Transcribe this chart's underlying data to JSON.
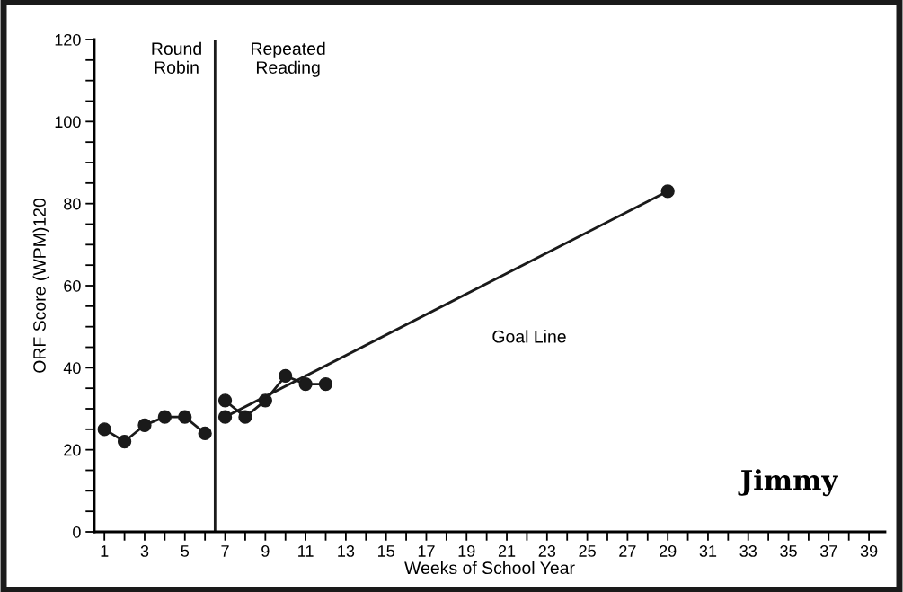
{
  "chart_data": {
    "type": "line",
    "xlabel": "Weeks of School Year",
    "ylabel": "ORF Score (WPM)120",
    "xlim": [
      0.5,
      39.8
    ],
    "ylim": [
      0,
      120
    ],
    "xticks": [
      1,
      {
        "value": 2,
        "label": null
      },
      3,
      {
        "value": 4,
        "label": null
      },
      5,
      {
        "value": 6,
        "label": null
      },
      7,
      {
        "value": 8,
        "label": null
      },
      9,
      {
        "value": 10,
        "label": null
      },
      11,
      {
        "value": 12,
        "label": null
      },
      13,
      {
        "value": 14,
        "label": null
      },
      15,
      {
        "value": 16,
        "label": null
      },
      17,
      {
        "value": 18,
        "label": null
      },
      19,
      {
        "value": 20,
        "label": null
      },
      21,
      {
        "value": 22,
        "label": null
      },
      23,
      {
        "value": 24,
        "label": null
      },
      25,
      {
        "value": 26,
        "label": null
      },
      27,
      {
        "value": 28,
        "label": null
      },
      29,
      {
        "value": 30,
        "label": null
      },
      31,
      {
        "value": 32,
        "label": null
      },
      33,
      {
        "value": 34,
        "label": null
      },
      35,
      {
        "value": 36,
        "label": null
      },
      37,
      {
        "value": 38,
        "label": null
      },
      39
    ],
    "yticks": [
      0,
      {
        "value": 5,
        "label": null
      },
      {
        "value": 10,
        "label": null
      },
      {
        "value": 15,
        "label": null
      },
      20,
      {
        "value": 25,
        "label": null
      },
      {
        "value": 30,
        "label": null
      },
      {
        "value": 35,
        "label": null
      },
      40,
      {
        "value": 45,
        "label": null
      },
      {
        "value": 50,
        "label": null
      },
      {
        "value": 55,
        "label": null
      },
      60,
      {
        "value": 65,
        "label": null
      },
      {
        "value": 70,
        "label": null
      },
      {
        "value": 75,
        "label": null
      },
      80,
      {
        "value": 85,
        "label": null
      },
      {
        "value": 90,
        "label": null
      },
      {
        "value": 95,
        "label": null
      },
      100,
      {
        "value": 105,
        "label": null
      },
      {
        "value": 110,
        "label": null
      },
      {
        "value": 115,
        "label": null
      },
      120
    ],
    "marker": "circle",
    "line_style": "solid",
    "grid": false,
    "legend": false,
    "series": [
      {
        "color": "#1a1a1a",
        "x": [
          1,
          2,
          3,
          4,
          5,
          6
        ],
        "values": [
          25,
          22,
          26,
          28,
          28,
          24
        ]
      },
      {
        "color": "#1a1a1a",
        "x": [
          7,
          8,
          9,
          10,
          11,
          12
        ],
        "values": [
          32,
          28,
          32,
          38,
          36,
          36
        ]
      },
      {
        "color": "#1a1a1a",
        "x": [
          7,
          29
        ],
        "values": [
          28,
          83
        ]
      }
    ],
    "ref_lines": [
      {
        "axis": "x",
        "value": 6.5,
        "color": "#1a1a1a",
        "line_style": "solid"
      }
    ],
    "annotations": [
      "Round\nRobin",
      "Repeated\nReading",
      "Goal Line",
      "Jimmy"
    ]
  }
}
